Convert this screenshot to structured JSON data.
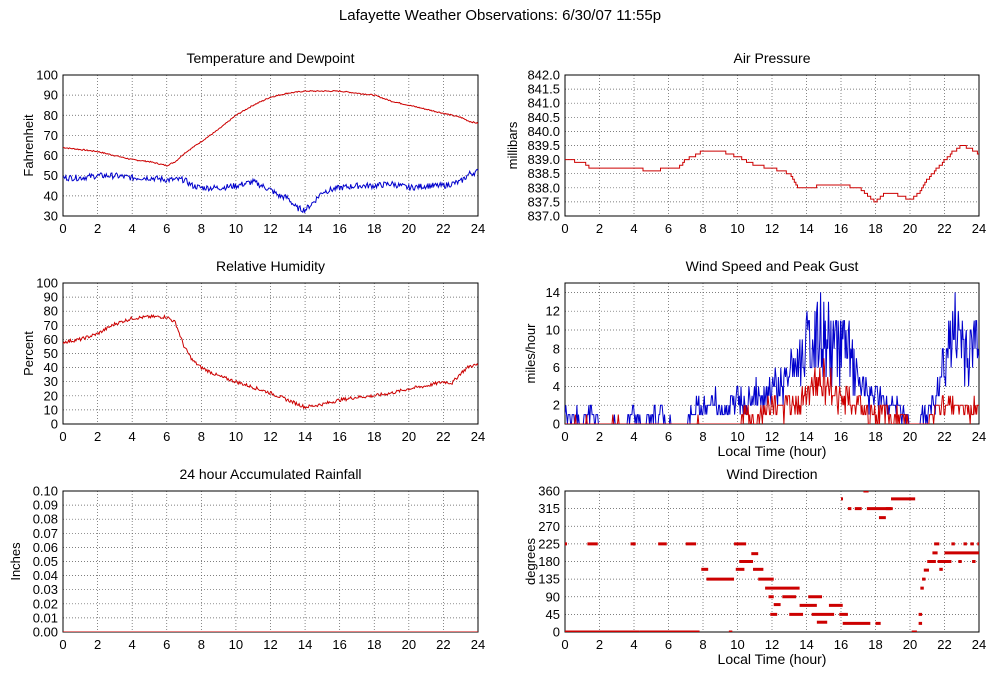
{
  "page_title": "Lafayette Weather Observations: 6/30/07 11:55p",
  "colors": {
    "red": "#cc0000",
    "blue": "#0000cc",
    "grid": "#555555"
  },
  "chart_data": [
    {
      "id": "temperature",
      "type": "line",
      "title": "Temperature and Dewpoint",
      "xlabel": "",
      "ylabel": "Fahrenheit",
      "xlim": [
        0,
        24
      ],
      "ylim": [
        30,
        100
      ],
      "xticks": [
        0,
        2,
        4,
        6,
        8,
        10,
        12,
        14,
        16,
        18,
        20,
        22,
        24
      ],
      "yticks": [
        "30",
        "40",
        "50",
        "60",
        "70",
        "80",
        "90",
        "100"
      ],
      "grid": true,
      "series": [
        {
          "color": "#cc0000",
          "jitter": 0.3,
          "x": [
            0,
            1,
            2,
            3,
            4,
            5,
            5.5,
            6,
            6.5,
            7,
            8,
            9,
            10,
            11,
            12,
            13,
            14,
            15,
            16,
            17,
            18,
            19,
            20,
            21,
            22,
            23,
            23.5,
            24
          ],
          "y": [
            64,
            63,
            62,
            60,
            58,
            57,
            56,
            55,
            57,
            61,
            67,
            73,
            80,
            85,
            89,
            91,
            92,
            92,
            92,
            91,
            90,
            87,
            85,
            83,
            81,
            79,
            77,
            76
          ]
        },
        {
          "color": "#0000cc",
          "jitter": 1.5,
          "x": [
            0,
            1,
            2,
            3,
            4,
            5,
            6,
            7,
            7.5,
            8,
            9,
            10,
            11,
            12,
            12.5,
            13,
            13.5,
            14,
            14.5,
            15,
            16,
            17,
            18,
            19,
            20,
            21,
            22,
            23,
            23.5,
            24
          ],
          "y": [
            49,
            49,
            50,
            50,
            49,
            49,
            48,
            48,
            45,
            44,
            44,
            45,
            47,
            43,
            40,
            39,
            34,
            33,
            37,
            42,
            44,
            45,
            45,
            46,
            44,
            45,
            45,
            47,
            51,
            52
          ]
        }
      ]
    },
    {
      "id": "pressure",
      "type": "line",
      "title": "Air Pressure",
      "xlabel": "",
      "ylabel": "millibars",
      "xlim": [
        0,
        24
      ],
      "ylim": [
        837,
        842
      ],
      "xticks": [
        0,
        2,
        4,
        6,
        8,
        10,
        12,
        14,
        16,
        18,
        20,
        22,
        24
      ],
      "yticks": [
        "837.0",
        "837.5",
        "838.0",
        "838.5",
        "839.0",
        "839.5",
        "840.0",
        "840.5",
        "841.0",
        "841.5",
        "842.0"
      ],
      "grid": true,
      "series": [
        {
          "color": "#cc0000",
          "step": true,
          "x": [
            0,
            1,
            1.5,
            3,
            4,
            5,
            6,
            6.5,
            7,
            8,
            9,
            10,
            11,
            12,
            13,
            13.5,
            14,
            15,
            16,
            17,
            18,
            18.5,
            19,
            20,
            20.5,
            21,
            22,
            22.5,
            23,
            23.5,
            24
          ],
          "y": [
            839.0,
            838.9,
            838.7,
            838.7,
            838.7,
            838.6,
            838.7,
            838.7,
            839.0,
            839.3,
            839.3,
            839.1,
            838.8,
            838.7,
            838.5,
            838.0,
            838.0,
            838.1,
            838.1,
            838.0,
            837.5,
            837.8,
            837.8,
            837.6,
            837.8,
            838.3,
            839.0,
            839.3,
            839.5,
            839.4,
            839.2
          ]
        }
      ]
    },
    {
      "id": "humidity",
      "type": "line",
      "title": "Relative Humidity",
      "xlabel": "",
      "ylabel": "Percent",
      "xlim": [
        0,
        24
      ],
      "ylim": [
        0,
        100
      ],
      "xticks": [
        0,
        2,
        4,
        6,
        8,
        10,
        12,
        14,
        16,
        18,
        20,
        22,
        24
      ],
      "yticks": [
        "0",
        "10",
        "20",
        "30",
        "40",
        "50",
        "60",
        "70",
        "80",
        "90",
        "100"
      ],
      "grid": true,
      "series": [
        {
          "color": "#cc0000",
          "jitter": 1.2,
          "x": [
            0,
            1,
            2,
            3,
            4,
            5,
            6,
            6.5,
            7,
            7.5,
            8,
            9,
            10,
            11,
            12,
            13,
            14,
            15,
            16,
            17,
            18,
            19,
            20,
            21,
            22,
            22.5,
            23,
            23.5,
            24
          ],
          "y": [
            58,
            60,
            64,
            71,
            75,
            76,
            76,
            72,
            55,
            45,
            40,
            34,
            30,
            26,
            22,
            17,
            12,
            14,
            17,
            19,
            20,
            22,
            25,
            27,
            30,
            29,
            36,
            41,
            42
          ]
        }
      ]
    },
    {
      "id": "wind_speed",
      "type": "line",
      "title": "Wind Speed and Peak Gust",
      "xlabel": "Local Time (hour)",
      "ylabel": "miles/hour",
      "xlim": [
        0,
        24
      ],
      "ylim": [
        0,
        15
      ],
      "xticks": [
        0,
        2,
        4,
        6,
        8,
        10,
        12,
        14,
        16,
        18,
        20,
        22,
        24
      ],
      "yticks": [
        "0",
        "2",
        "4",
        "6",
        "8",
        "10",
        "12",
        "14"
      ],
      "grid": true,
      "series": [
        {
          "color": "#0000cc",
          "spiky": true,
          "x": [
            0,
            1,
            1.5,
            2,
            3.5,
            4,
            4.5,
            5.5,
            6,
            7,
            7.5,
            8,
            9,
            9.5,
            10,
            10.5,
            11,
            11.5,
            12,
            12.5,
            13,
            13.5,
            14,
            14.5,
            15,
            15.5,
            16,
            16.5,
            17,
            17.5,
            18,
            18.5,
            19,
            19.5,
            20,
            20.5,
            21,
            21.5,
            22,
            22.5,
            23,
            23.5,
            24
          ],
          "y": [
            1,
            0,
            1,
            0,
            0,
            1,
            0,
            1,
            0,
            0,
            1,
            2,
            2,
            1,
            3,
            2,
            3,
            3,
            4,
            4,
            5,
            6,
            8,
            9,
            9,
            8,
            9,
            7,
            4,
            3,
            3,
            2,
            2,
            1,
            0,
            0,
            1,
            2,
            7,
            9,
            9,
            7,
            10
          ]
        },
        {
          "color": "#cc0000",
          "spiky": true,
          "x": [
            0,
            6,
            8,
            9,
            9.5,
            10,
            10.5,
            11,
            11.5,
            12,
            12.5,
            13,
            13.5,
            14,
            14.5,
            15,
            15.5,
            16,
            16.5,
            17,
            17.5,
            18,
            18.5,
            19,
            19.5,
            20,
            21,
            21.5,
            22,
            22.5,
            23,
            23.5,
            24
          ],
          "y": [
            0,
            0,
            0,
            0,
            0,
            0,
            1,
            0,
            1,
            2,
            1,
            2,
            2,
            3,
            4,
            5,
            3,
            3,
            2,
            2,
            1,
            1,
            1,
            0,
            1,
            0,
            0,
            1,
            2,
            2,
            2,
            1,
            2
          ]
        }
      ]
    },
    {
      "id": "rainfall",
      "type": "line",
      "title": "24 hour Accumulated Rainfall",
      "xlabel": "",
      "ylabel": "Inches",
      "xlim": [
        0,
        24
      ],
      "ylim": [
        0,
        0.1
      ],
      "xticks": [
        0,
        2,
        4,
        6,
        8,
        10,
        12,
        14,
        16,
        18,
        20,
        22,
        24
      ],
      "yticks": [
        "0.00",
        "0.01",
        "0.02",
        "0.03",
        "0.04",
        "0.05",
        "0.06",
        "0.07",
        "0.08",
        "0.09",
        "0.10"
      ],
      "grid": true,
      "series": [
        {
          "color": "#cc0000",
          "x": [
            0,
            24
          ],
          "y": [
            0,
            0
          ]
        }
      ]
    },
    {
      "id": "wind_direction",
      "type": "scatter",
      "title": "Wind Direction",
      "xlabel": "Local Time (hour)",
      "ylabel": "degrees",
      "xlim": [
        0,
        24
      ],
      "ylim": [
        0,
        360
      ],
      "xticks": [
        0,
        2,
        4,
        6,
        8,
        10,
        12,
        14,
        16,
        18,
        20,
        22,
        24
      ],
      "yticks": [
        "0",
        "45",
        "90",
        "135",
        "180",
        "225",
        "270",
        "315",
        "360"
      ],
      "grid": true,
      "series": [
        {
          "color": "#cc0000",
          "segments": [
            [
              0.0,
              0.08,
              225
            ],
            [
              0.0,
              4.3,
              0
            ],
            [
              1.3,
              1.9,
              225
            ],
            [
              3.8,
              4.1,
              225
            ],
            [
              4.3,
              7.8,
              0
            ],
            [
              5.4,
              5.9,
              225
            ],
            [
              7.0,
              7.6,
              225
            ],
            [
              7.9,
              8.3,
              160
            ],
            [
              8.2,
              9.8,
              135
            ],
            [
              9.5,
              9.7,
              0
            ],
            [
              9.8,
              10.5,
              225
            ],
            [
              10.1,
              10.9,
              180
            ],
            [
              9.9,
              10.4,
              160
            ],
            [
              10.8,
              11.2,
              200
            ],
            [
              10.9,
              11.5,
              160
            ],
            [
              11.2,
              12.1,
              135
            ],
            [
              11.6,
              13.6,
              112
            ],
            [
              11.8,
              12.1,
              90
            ],
            [
              11.9,
              12.3,
              45
            ],
            [
              12.1,
              12.5,
              70
            ],
            [
              12.6,
              13.4,
              90
            ],
            [
              13.0,
              13.8,
              45
            ],
            [
              13.6,
              14.6,
              68
            ],
            [
              14.1,
              14.9,
              90
            ],
            [
              14.3,
              15.6,
              45
            ],
            [
              14.6,
              15.2,
              25
            ],
            [
              15.3,
              16.1,
              68
            ],
            [
              15.9,
              16.4,
              45
            ],
            [
              16.1,
              17.7,
              22
            ],
            [
              16.0,
              16.1,
              340
            ],
            [
              16.4,
              16.6,
              315
            ],
            [
              16.8,
              17.2,
              315
            ],
            [
              17.3,
              17.6,
              360
            ],
            [
              17.5,
              18.9,
              315
            ],
            [
              18.2,
              18.6,
              292
            ],
            [
              18.6,
              19.0,
              315
            ],
            [
              18.0,
              18.3,
              22
            ],
            [
              18.9,
              20.3,
              340
            ],
            [
              20.1,
              20.4,
              0
            ],
            [
              20.5,
              20.7,
              22
            ],
            [
              20.5,
              20.7,
              45
            ],
            [
              20.6,
              20.8,
              112
            ],
            [
              20.7,
              20.9,
              135
            ],
            [
              20.8,
              21.1,
              158
            ],
            [
              21.0,
              21.5,
              180
            ],
            [
              21.3,
              21.6,
              202
            ],
            [
              21.4,
              21.7,
              225
            ],
            [
              21.6,
              22.4,
              180
            ],
            [
              21.7,
              21.9,
              160
            ],
            [
              22.0,
              24.0,
              202
            ],
            [
              22.4,
              22.6,
              225
            ],
            [
              22.8,
              23.0,
              180
            ],
            [
              23.1,
              23.3,
              225
            ],
            [
              23.5,
              23.7,
              225
            ],
            [
              23.6,
              23.8,
              180
            ],
            [
              23.9,
              24.0,
              225
            ]
          ]
        }
      ]
    }
  ]
}
